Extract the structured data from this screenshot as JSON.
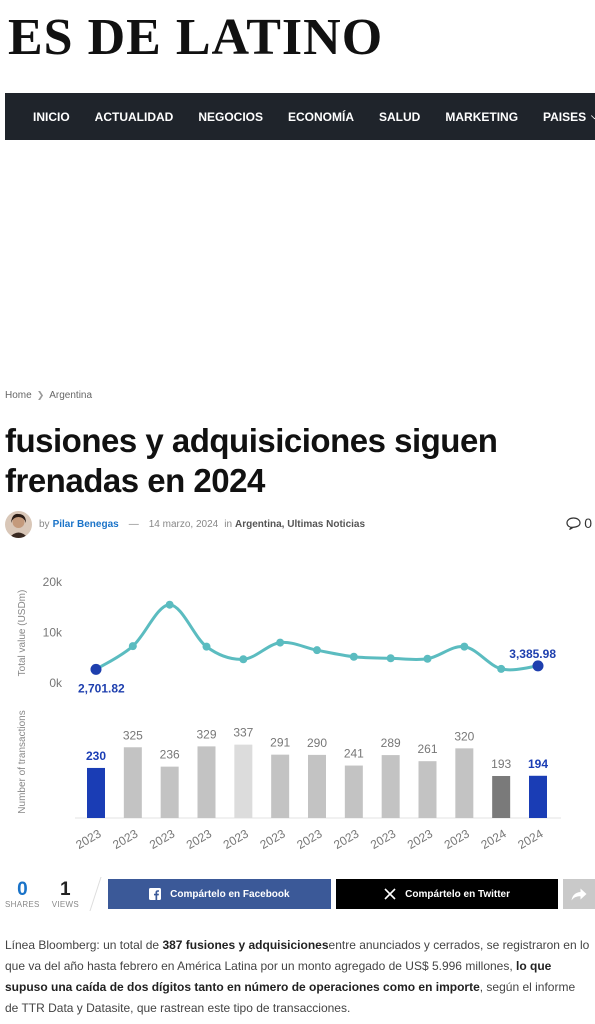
{
  "site": {
    "logo": "ES DE LATINO"
  },
  "nav": {
    "items": [
      "INICIO",
      "ACTUALIDAD",
      "NEGOCIOS",
      "ECONOMÍA",
      "SALUD",
      "MARKETING",
      "PAISES"
    ]
  },
  "breadcrumb": {
    "home": "Home",
    "current": "Argentina"
  },
  "article": {
    "title": "fusiones y adquisiciones siguen frenadas en 2024",
    "by": "by",
    "author": "Pilar Benegas",
    "date": "14 marzo, 2024",
    "in": "in",
    "categories": "Argentina, Ultimas Noticias",
    "comments": "0",
    "p1": "Línea Bloomberg: un total de ",
    "p1_bold1": "387 fusiones y adquisiciones",
    "p1_b": "entre anunciados y cerrados, se registraron en lo que va del año hasta febrero en América Latina por un monto agregado de US$ 5.996 millones, ",
    "p1_bold2": "lo que supuso una caída de dos dígitos tanto en número de operaciones como en importe",
    "p1_c": ", según el informe de TTR Data y Datasite, que rastrean este tipo de transacciones."
  },
  "share": {
    "shares_count": "0",
    "shares_label": "SHARES",
    "views_count": "1",
    "views_label": "VIEWS",
    "facebook_label": "Compártelo en Facebook",
    "twitter_label": "Compártelo en Twitter"
  },
  "chart_data": {
    "type": "line+bar",
    "line": {
      "ylabel": "Total value (USDm)",
      "yticks": [
        "20k",
        "10k",
        "0k"
      ],
      "ylim": [
        0,
        20000
      ],
      "values": [
        2701.82,
        7300,
        15500,
        7200,
        4700,
        8000,
        6500,
        5200,
        4900,
        4800,
        7200,
        2800,
        3385.98
      ],
      "labels": {
        "first": "2,701.82",
        "last": "3,385.98"
      },
      "color": "#5bbcc0",
      "marker_color": "#1e3fae"
    },
    "bars": {
      "ylabel": "Number of transactions",
      "values": [
        230,
        325,
        236,
        329,
        337,
        291,
        290,
        241,
        289,
        261,
        320,
        193,
        194
      ],
      "labels": [
        "230",
        "325",
        "236",
        "329",
        "337",
        "291",
        "290",
        "241",
        "289",
        "261",
        "320",
        "193",
        "194"
      ],
      "colors": [
        "#1a3db5",
        "#c3c3c3",
        "#c3c3c3",
        "#c3c3c3",
        "#dcdcdc",
        "#c3c3c3",
        "#c3c3c3",
        "#c3c3c3",
        "#c3c3c3",
        "#c3c3c3",
        "#c3c3c3",
        "#7a7a7a",
        "#1a3db5"
      ],
      "highlight": [
        0,
        12
      ]
    },
    "x_labels": [
      "2023",
      "2023",
      "2023",
      "2023",
      "2023",
      "2023",
      "2023",
      "2023",
      "2023",
      "2023",
      "2023",
      "2024",
      "2024"
    ]
  }
}
